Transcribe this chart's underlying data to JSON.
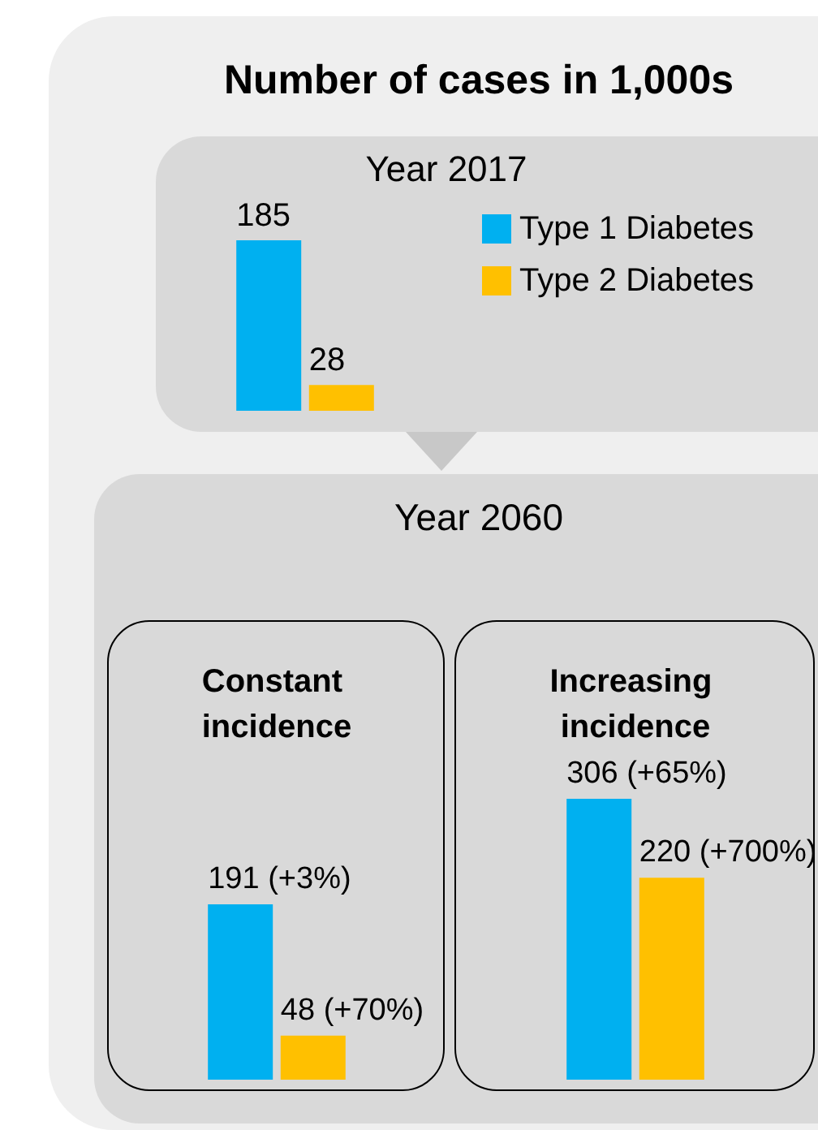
{
  "chart_data": [
    {
      "type": "bar",
      "title": "Number of cases in 1,000s",
      "subtitle": "Year 2017",
      "categories": [
        null
      ],
      "series": [
        {
          "name": "Type 1 Diabetes",
          "color": "#00b0f0",
          "values": [
            185
          ]
        },
        {
          "name": "Type 2 Diabetes",
          "color": "#ffc000",
          "values": [
            28
          ]
        }
      ],
      "data_labels": true,
      "legend": "right",
      "tick_labels": false
    },
    {
      "type": "bar",
      "title": "Year 2060",
      "categories": [
        "Constant incidence",
        "Increasing incidence"
      ],
      "series": [
        {
          "color": "#00b0f0",
          "values": [
            191,
            306
          ],
          "value_labels": [
            "191 (+3%)",
            "306 (+65%)"
          ]
        },
        {
          "color": "#ffc000",
          "values": [
            48,
            220
          ],
          "value_labels": [
            "48 (+70%)",
            "220 (+700%)"
          ]
        }
      ],
      "tick_labels": "x"
    }
  ]
}
